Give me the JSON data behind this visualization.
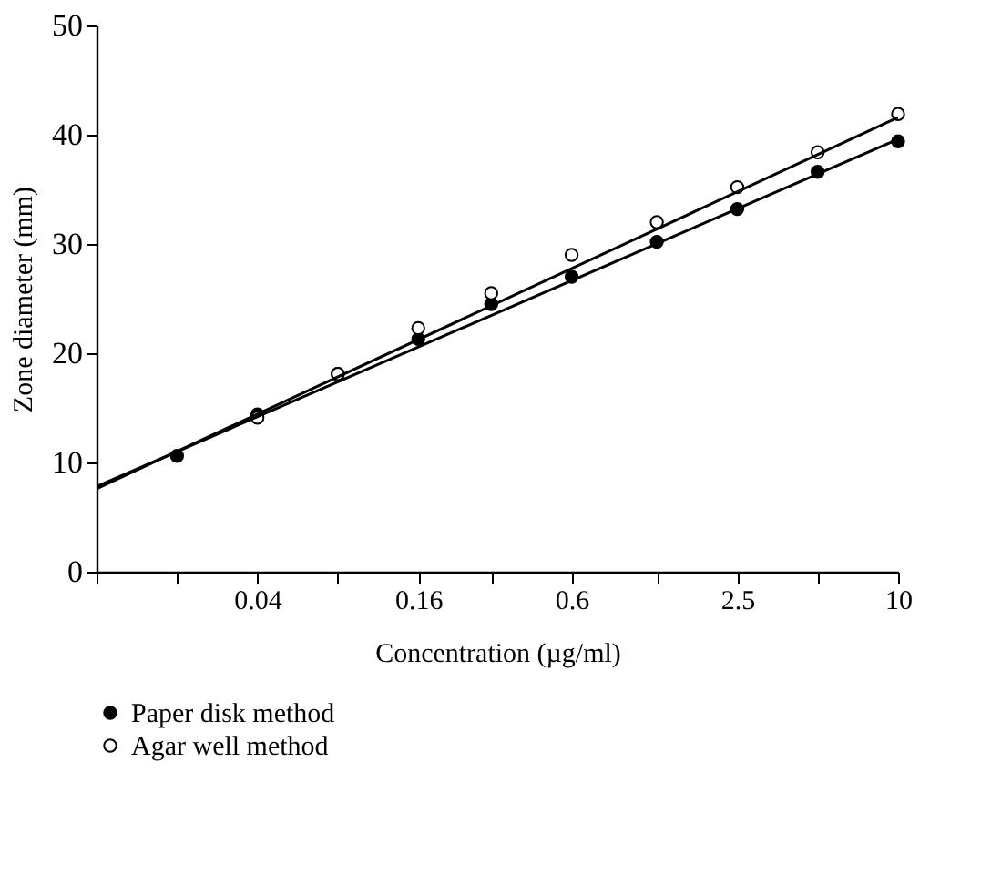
{
  "chart_data": {
    "type": "scatter",
    "xlabel": "Concentration (µg/ml)",
    "ylabel": "Zone diameter (mm)",
    "log": "x",
    "xlim": [
      0.01,
      10
    ],
    "ylim": [
      0,
      50
    ],
    "yticks": [
      0,
      10,
      20,
      30,
      40,
      50
    ],
    "xticks": [
      {
        "value": 0.01,
        "label": null
      },
      {
        "value": 0.02,
        "label": null
      },
      0.04,
      {
        "value": 0.08,
        "label": null
      },
      0.16,
      {
        "value": 0.3,
        "label": null
      },
      0.6,
      {
        "value": 1.25,
        "label": null
      },
      2.5,
      {
        "value": 5,
        "label": null
      },
      10
    ],
    "grid": false,
    "legend": "bottom",
    "marker": "circle",
    "series": [
      {
        "name": "Paper disk method",
        "color": "#000000",
        "x": [
          0.02,
          0.04,
          0.08,
          0.16,
          0.3,
          0.6,
          1.25,
          2.5,
          5,
          10
        ],
        "values": [
          10.6,
          14.4,
          18.1,
          21.3,
          24.5,
          27.0,
          30.2,
          33.2,
          36.6,
          39.4
        ]
      },
      {
        "name": "Agar well method",
        "color": "#ffffff",
        "x": [
          0.04,
          0.08,
          0.16,
          0.3,
          0.6,
          1.25,
          2.5,
          5,
          10
        ],
        "values": [
          14.1,
          18.1,
          22.3,
          25.5,
          29.0,
          32.0,
          35.2,
          38.4,
          41.9
        ]
      },
      {
        "type": "line",
        "marker": "none",
        "color": "#000000",
        "x": [
          0.01,
          10
        ],
        "values": [
          7.8,
          39.6
        ]
      },
      {
        "type": "line",
        "marker": "none",
        "color": "#000000",
        "x": [
          0.01,
          10
        ],
        "values": [
          7.6,
          41.6
        ]
      }
    ]
  }
}
